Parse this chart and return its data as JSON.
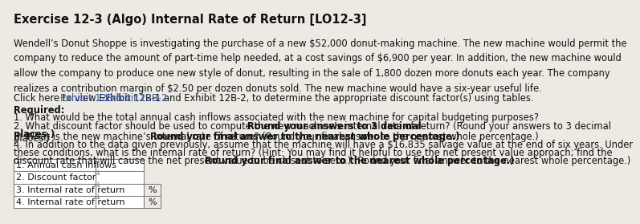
{
  "title": "Exercise 12-3 (Algo) Internal Rate of Return [LO12-3]",
  "body_lines": [
    "Wendell’s Donut Shoppe is investigating the purchase of a new $52,000 donut-making machine. The new machine would permit the",
    "company to reduce the amount of part-time help needed, at a cost savings of $6,900 per year. In addition, the new machine would",
    "allow the company to produce one new style of donut, resulting in the sale of 1,800 dozen more donuts each year. The company",
    "realizes a contribution margin of $2.50 per dozen donuts sold. The new machine would have a six-year useful life."
  ],
  "click_prefix": "Click here to view ",
  "click_link1": "Exhibit 12B-1",
  "click_mid": " and ",
  "click_link2": "Exhibit 12B-2",
  "click_suffix": ", to determine the appropriate discount factor(s) using tables.",
  "required_label": "Required:",
  "item1": "1. What would be the total annual cash inflows associated with the new machine for capital budgeting purposes?",
  "item2_normal": "2. What discount factor should be used to compute the new machine’s internal rate of return? (",
  "item2_bold": "Round your answers to 3 decimal",
  "item2_bold2": "places.",
  "item2_end": ")",
  "item3_normal": "3. What is the new machine’s internal rate of return? (",
  "item3_bold": "Round your final answer to the nearest whole percentage.",
  "item3_end": ")",
  "item4_line1": "4. In addition to the data given previously, assume that the machine will have a $16,835 salvage value at the end of six years. Under",
  "item4_line2": "these conditions, what is the internal rate of return? (Hint: You may find it helpful to use the net present value approach; find the",
  "item4_line3_normal": "discount rate that will cause the net present value to be closest to zero.) (",
  "item4_line3_bold": "Round your final answer to the nearest whole percentage.",
  "item4_line3_end": ")",
  "table_rows": [
    {
      "label": "1. Annual cash inflows",
      "has_percent": false
    },
    {
      "label": "2. Discount factor",
      "has_percent": false
    },
    {
      "label": "3. Internal rate of return",
      "has_percent": true
    },
    {
      "label": "4. Internal rate of return",
      "has_percent": true
    }
  ],
  "bg_color": "#edeae4",
  "text_color": "#111111",
  "link_color": "#3355aa",
  "bold_color": "#111111",
  "body_fontsize": 8.3,
  "title_fontsize": 10.5,
  "table_fontsize": 8.0
}
